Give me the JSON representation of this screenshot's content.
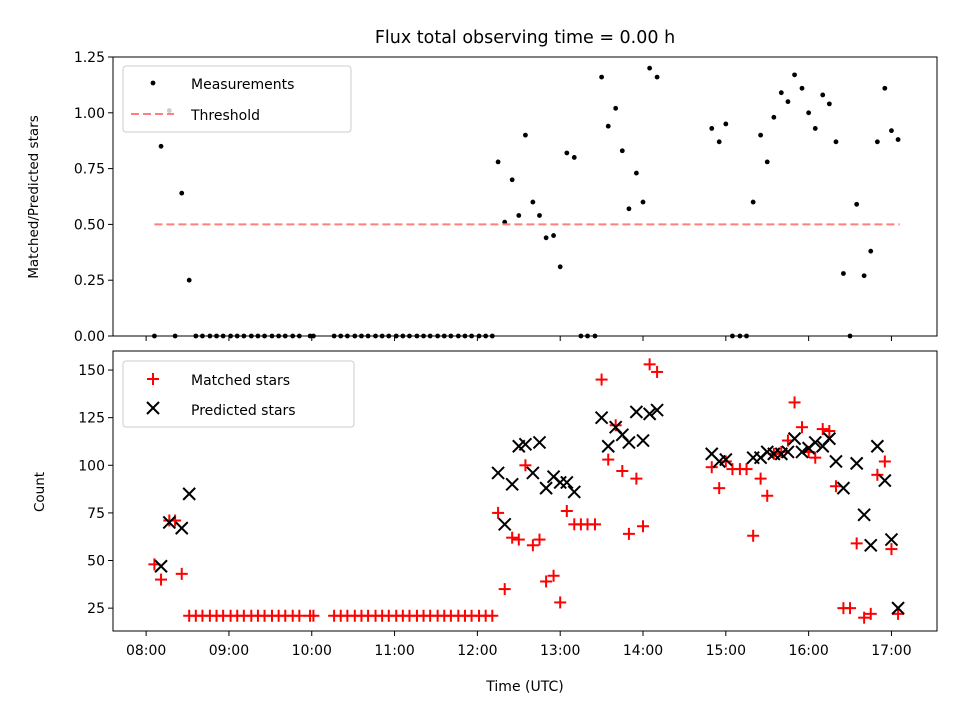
{
  "chart_data": [
    {
      "type": "scatter",
      "title": "Flux total observing time = 0.00 h",
      "xlabel": "",
      "ylabel": "Matched/Predicted stars",
      "xlim": [
        7.6,
        17.55
      ],
      "ylim": [
        0,
        1.25
      ],
      "yticks": [
        0,
        0.25,
        0.5,
        0.75,
        1.0,
        1.25
      ],
      "ytick_labels": [
        "0.00",
        "0.25",
        "0.50",
        "0.75",
        "1.00",
        "1.25"
      ],
      "legend_position": "upper-left",
      "series": [
        {
          "name": "Measurements",
          "marker": "dot",
          "color": "#000000",
          "points": [
            [
              8.1,
              0.0
            ],
            [
              8.18,
              0.85
            ],
            [
              8.28,
              1.01
            ],
            [
              8.35,
              0.0
            ],
            [
              8.43,
              0.64
            ],
            [
              8.52,
              0.25
            ],
            [
              8.6,
              0.0
            ],
            [
              8.68,
              0.0
            ],
            [
              8.77,
              0.0
            ],
            [
              8.85,
              0.0
            ],
            [
              8.93,
              0.0
            ],
            [
              9.02,
              0.0
            ],
            [
              9.1,
              0.0
            ],
            [
              9.18,
              0.0
            ],
            [
              9.27,
              0.0
            ],
            [
              9.35,
              0.0
            ],
            [
              9.43,
              0.0
            ],
            [
              9.52,
              0.0
            ],
            [
              9.6,
              0.0
            ],
            [
              9.68,
              0.0
            ],
            [
              9.77,
              0.0
            ],
            [
              9.85,
              0.0
            ],
            [
              9.98,
              0.0
            ],
            [
              10.02,
              0.0
            ],
            [
              10.27,
              0.0
            ],
            [
              10.35,
              0.0
            ],
            [
              10.43,
              0.0
            ],
            [
              10.52,
              0.0
            ],
            [
              10.6,
              0.0
            ],
            [
              10.68,
              0.0
            ],
            [
              10.77,
              0.0
            ],
            [
              10.85,
              0.0
            ],
            [
              10.93,
              0.0
            ],
            [
              11.02,
              0.0
            ],
            [
              11.1,
              0.0
            ],
            [
              11.18,
              0.0
            ],
            [
              11.27,
              0.0
            ],
            [
              11.35,
              0.0
            ],
            [
              11.43,
              0.0
            ],
            [
              11.52,
              0.0
            ],
            [
              11.6,
              0.0
            ],
            [
              11.68,
              0.0
            ],
            [
              11.77,
              0.0
            ],
            [
              11.85,
              0.0
            ],
            [
              11.93,
              0.0
            ],
            [
              12.02,
              0.0
            ],
            [
              12.1,
              0.0
            ],
            [
              12.18,
              0.0
            ],
            [
              12.25,
              0.78
            ],
            [
              12.33,
              0.51
            ],
            [
              12.42,
              0.7
            ],
            [
              12.5,
              0.54
            ],
            [
              12.58,
              0.9
            ],
            [
              12.67,
              0.6
            ],
            [
              12.75,
              0.54
            ],
            [
              12.83,
              0.44
            ],
            [
              12.92,
              0.45
            ],
            [
              13.0,
              0.31
            ],
            [
              13.08,
              0.82
            ],
            [
              13.17,
              0.8
            ],
            [
              13.25,
              0.0
            ],
            [
              13.33,
              0.0
            ],
            [
              13.42,
              0.0
            ],
            [
              13.5,
              1.16
            ],
            [
              13.58,
              0.94
            ],
            [
              13.67,
              1.02
            ],
            [
              13.75,
              0.83
            ],
            [
              13.83,
              0.57
            ],
            [
              13.92,
              0.73
            ],
            [
              14.0,
              0.6
            ],
            [
              14.08,
              1.2
            ],
            [
              14.17,
              1.16
            ],
            [
              14.83,
              0.93
            ],
            [
              14.92,
              0.87
            ],
            [
              15.0,
              0.95
            ],
            [
              15.08,
              0.0
            ],
            [
              15.17,
              0.0
            ],
            [
              15.25,
              0.0
            ],
            [
              15.33,
              0.6
            ],
            [
              15.42,
              0.9
            ],
            [
              15.5,
              0.78
            ],
            [
              15.58,
              0.98
            ],
            [
              15.67,
              1.09
            ],
            [
              15.75,
              1.05
            ],
            [
              15.83,
              1.17
            ],
            [
              15.92,
              1.11
            ],
            [
              16.0,
              1.0
            ],
            [
              16.08,
              0.93
            ],
            [
              16.17,
              1.08
            ],
            [
              16.25,
              1.04
            ],
            [
              16.33,
              0.87
            ],
            [
              16.42,
              0.28
            ],
            [
              16.5,
              0.0
            ],
            [
              16.58,
              0.59
            ],
            [
              16.67,
              0.27
            ],
            [
              16.75,
              0.38
            ],
            [
              16.83,
              0.87
            ],
            [
              16.92,
              1.11
            ],
            [
              17.0,
              0.92
            ],
            [
              17.08,
              0.88
            ]
          ]
        },
        {
          "name": "Threshold",
          "marker": "dashed-line",
          "color": "#ff7f7f",
          "points": [
            [
              8.1,
              0.5
            ],
            [
              17.1,
              0.5
            ]
          ]
        }
      ]
    },
    {
      "type": "scatter",
      "title": "",
      "xlabel": "Time (UTC)",
      "ylabel": "Count",
      "xlim": [
        7.6,
        17.55
      ],
      "ylim": [
        13,
        160
      ],
      "yticks": [
        25,
        50,
        75,
        100,
        125,
        150
      ],
      "ytick_labels": [
        "25",
        "50",
        "75",
        "100",
        "125",
        "150"
      ],
      "xticks": [
        8,
        9,
        10,
        11,
        12,
        13,
        14,
        15,
        16,
        17
      ],
      "xtick_labels": [
        "08:00",
        "09:00",
        "10:00",
        "11:00",
        "12:00",
        "13:00",
        "14:00",
        "15:00",
        "16:00",
        "17:00"
      ],
      "legend_position": "upper-left",
      "series": [
        {
          "name": "Matched stars",
          "marker": "plus",
          "color": "#ff0000",
          "points": [
            [
              8.1,
              48
            ],
            [
              8.18,
              40
            ],
            [
              8.28,
              71
            ],
            [
              8.35,
              71
            ],
            [
              8.43,
              43
            ],
            [
              8.52,
              21
            ],
            [
              8.6,
              21
            ],
            [
              8.68,
              21
            ],
            [
              8.77,
              21
            ],
            [
              8.85,
              21
            ],
            [
              8.93,
              21
            ],
            [
              9.02,
              21
            ],
            [
              9.1,
              21
            ],
            [
              9.18,
              21
            ],
            [
              9.27,
              21
            ],
            [
              9.35,
              21
            ],
            [
              9.43,
              21
            ],
            [
              9.52,
              21
            ],
            [
              9.6,
              21
            ],
            [
              9.68,
              21
            ],
            [
              9.77,
              21
            ],
            [
              9.85,
              21
            ],
            [
              9.98,
              21
            ],
            [
              10.02,
              21
            ],
            [
              10.27,
              21
            ],
            [
              10.35,
              21
            ],
            [
              10.43,
              21
            ],
            [
              10.52,
              21
            ],
            [
              10.6,
              21
            ],
            [
              10.68,
              21
            ],
            [
              10.77,
              21
            ],
            [
              10.85,
              21
            ],
            [
              10.93,
              21
            ],
            [
              11.02,
              21
            ],
            [
              11.1,
              21
            ],
            [
              11.18,
              21
            ],
            [
              11.27,
              21
            ],
            [
              11.35,
              21
            ],
            [
              11.43,
              21
            ],
            [
              11.52,
              21
            ],
            [
              11.6,
              21
            ],
            [
              11.68,
              21
            ],
            [
              11.77,
              21
            ],
            [
              11.85,
              21
            ],
            [
              11.93,
              21
            ],
            [
              12.02,
              21
            ],
            [
              12.1,
              21
            ],
            [
              12.18,
              21
            ],
            [
              12.25,
              75
            ],
            [
              12.33,
              35
            ],
            [
              12.42,
              62
            ],
            [
              12.5,
              61
            ],
            [
              12.58,
              100
            ],
            [
              12.67,
              58
            ],
            [
              12.75,
              61
            ],
            [
              12.83,
              39
            ],
            [
              12.92,
              42
            ],
            [
              13.0,
              28
            ],
            [
              13.08,
              76
            ],
            [
              13.17,
              69
            ],
            [
              13.25,
              69
            ],
            [
              13.33,
              69
            ],
            [
              13.42,
              69
            ],
            [
              13.5,
              145
            ],
            [
              13.58,
              103
            ],
            [
              13.67,
              121
            ],
            [
              13.75,
              97
            ],
            [
              13.83,
              64
            ],
            [
              13.92,
              93
            ],
            [
              14.0,
              68
            ],
            [
              14.08,
              153
            ],
            [
              14.17,
              149
            ],
            [
              14.83,
              99
            ],
            [
              14.92,
              88
            ],
            [
              15.0,
              102
            ],
            [
              15.08,
              98
            ],
            [
              15.17,
              98
            ],
            [
              15.25,
              98
            ],
            [
              15.33,
              63
            ],
            [
              15.42,
              93
            ],
            [
              15.5,
              84
            ],
            [
              15.58,
              106
            ],
            [
              15.67,
              107
            ],
            [
              15.75,
              113
            ],
            [
              15.83,
              133
            ],
            [
              15.92,
              120
            ],
            [
              16.0,
              107
            ],
            [
              16.08,
              104
            ],
            [
              16.17,
              119
            ],
            [
              16.25,
              118
            ],
            [
              16.33,
              89
            ],
            [
              16.42,
              25
            ],
            [
              16.5,
              25
            ],
            [
              16.58,
              59
            ],
            [
              16.67,
              20
            ],
            [
              16.75,
              22
            ],
            [
              16.83,
              95
            ],
            [
              16.92,
              102
            ],
            [
              17.0,
              56
            ],
            [
              17.08,
              22
            ]
          ]
        },
        {
          "name": "Predicted stars",
          "marker": "x",
          "color": "#000000",
          "points": [
            [
              8.18,
              47
            ],
            [
              8.28,
              70
            ],
            [
              8.43,
              67
            ],
            [
              8.52,
              85
            ],
            [
              12.25,
              96
            ],
            [
              12.33,
              69
            ],
            [
              12.42,
              90
            ],
            [
              12.5,
              110
            ],
            [
              12.58,
              111
            ],
            [
              12.67,
              96
            ],
            [
              12.75,
              112
            ],
            [
              12.83,
              88
            ],
            [
              12.92,
              94
            ],
            [
              13.0,
              91
            ],
            [
              13.08,
              91
            ],
            [
              13.17,
              86
            ],
            [
              13.5,
              125
            ],
            [
              13.58,
              110
            ],
            [
              13.67,
              120
            ],
            [
              13.75,
              116
            ],
            [
              13.83,
              112
            ],
            [
              13.92,
              128
            ],
            [
              14.0,
              113
            ],
            [
              14.08,
              127
            ],
            [
              14.17,
              129
            ],
            [
              14.83,
              106
            ],
            [
              14.92,
              102
            ],
            [
              15.0,
              103
            ],
            [
              15.33,
              104
            ],
            [
              15.42,
              104
            ],
            [
              15.5,
              107
            ],
            [
              15.58,
              106
            ],
            [
              15.67,
              106
            ],
            [
              15.75,
              107
            ],
            [
              15.83,
              114
            ],
            [
              15.92,
              107
            ],
            [
              16.0,
              109
            ],
            [
              16.08,
              112
            ],
            [
              16.17,
              110
            ],
            [
              16.25,
              114
            ],
            [
              16.33,
              102
            ],
            [
              16.42,
              88
            ],
            [
              16.58,
              101
            ],
            [
              16.67,
              74
            ],
            [
              16.75,
              58
            ],
            [
              16.83,
              110
            ],
            [
              16.92,
              92
            ],
            [
              17.0,
              61
            ],
            [
              17.08,
              25
            ]
          ]
        }
      ]
    }
  ]
}
